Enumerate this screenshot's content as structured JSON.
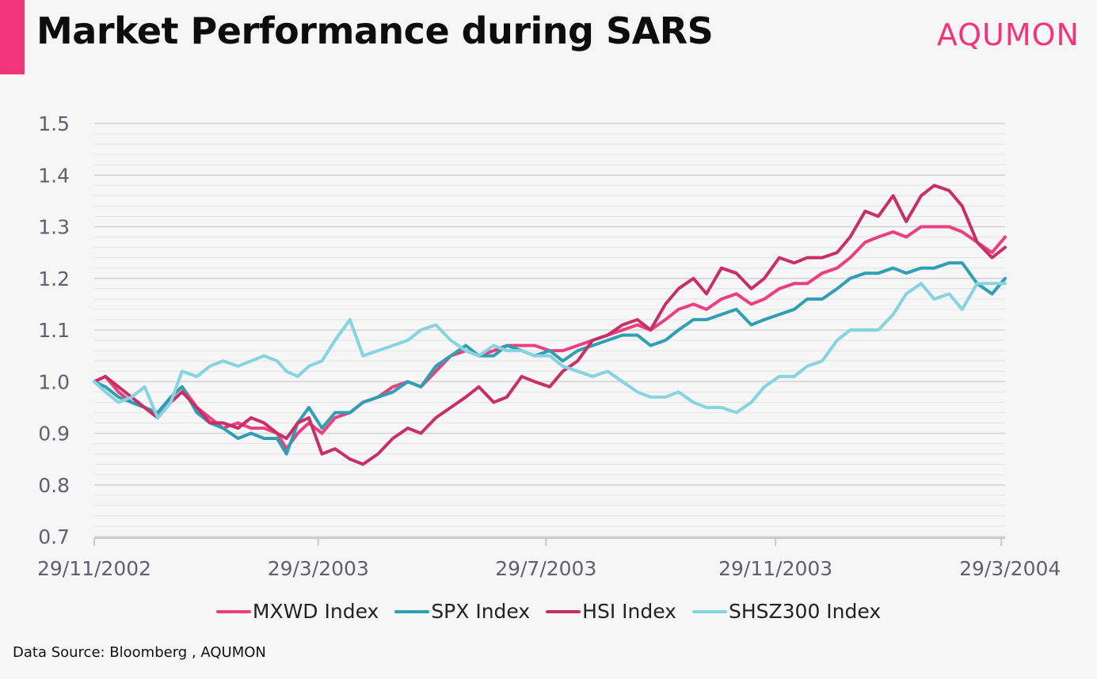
{
  "header": {
    "title": "Market Performance during SARS",
    "logo_text": "AQUMON",
    "accent_color": "#f0357a"
  },
  "footer": {
    "source": "Data Source: Bloomberg , AQUMON"
  },
  "chart_data": {
    "type": "line",
    "title": "Market Performance during SARS",
    "xlabel": "",
    "ylabel": "",
    "ylim": [
      0.7,
      1.5
    ],
    "yticks": [
      "0.7",
      "0.8",
      "0.9",
      "1.0",
      "1.1",
      "1.2",
      "1.3",
      "1.4",
      "1.5"
    ],
    "x_range": [
      "2002-11-29",
      "2004-03-31"
    ],
    "x_ticks": [
      {
        "label": "29/11/2002",
        "date": "2002-11-29"
      },
      {
        "label": "29/3/2003",
        "date": "2003-03-29"
      },
      {
        "label": "29/7/2003",
        "date": "2003-07-29"
      },
      {
        "label": "29/11/2003",
        "date": "2003-11-29"
      },
      {
        "label": "29/3/2004",
        "date": "2004-03-29"
      }
    ],
    "grid": true,
    "legend_position": "bottom",
    "series": [
      {
        "name": "MXWD Index",
        "color": "#ec3f7f",
        "points": [
          [
            "2002-11-29",
            1.0
          ],
          [
            "2002-12-05",
            1.01
          ],
          [
            "2002-12-12",
            0.98
          ],
          [
            "2002-12-19",
            0.96
          ],
          [
            "2002-12-26",
            0.95
          ],
          [
            "2003-01-02",
            0.93
          ],
          [
            "2003-01-09",
            0.97
          ],
          [
            "2003-01-15",
            0.99
          ],
          [
            "2003-01-23",
            0.95
          ],
          [
            "2003-01-30",
            0.93
          ],
          [
            "2003-02-06",
            0.91
          ],
          [
            "2003-02-14",
            0.92
          ],
          [
            "2003-02-21",
            0.91
          ],
          [
            "2003-02-28",
            0.91
          ],
          [
            "2003-03-07",
            0.9
          ],
          [
            "2003-03-12",
            0.87
          ],
          [
            "2003-03-18",
            0.9
          ],
          [
            "2003-03-24",
            0.92
          ],
          [
            "2003-03-31",
            0.9
          ],
          [
            "2003-04-07",
            0.93
          ],
          [
            "2003-04-15",
            0.94
          ],
          [
            "2003-04-22",
            0.96
          ],
          [
            "2003-04-30",
            0.97
          ],
          [
            "2003-05-08",
            0.99
          ],
          [
            "2003-05-16",
            1.0
          ],
          [
            "2003-05-23",
            0.99
          ],
          [
            "2003-05-31",
            1.02
          ],
          [
            "2003-06-08",
            1.05
          ],
          [
            "2003-06-16",
            1.06
          ],
          [
            "2003-06-23",
            1.05
          ],
          [
            "2003-07-01",
            1.06
          ],
          [
            "2003-07-08",
            1.07
          ],
          [
            "2003-07-16",
            1.07
          ],
          [
            "2003-07-23",
            1.07
          ],
          [
            "2003-07-31",
            1.06
          ],
          [
            "2003-08-07",
            1.06
          ],
          [
            "2003-08-15",
            1.07
          ],
          [
            "2003-08-23",
            1.08
          ],
          [
            "2003-08-31",
            1.09
          ],
          [
            "2003-09-08",
            1.1
          ],
          [
            "2003-09-16",
            1.11
          ],
          [
            "2003-09-23",
            1.1
          ],
          [
            "2003-10-01",
            1.12
          ],
          [
            "2003-10-08",
            1.14
          ],
          [
            "2003-10-16",
            1.15
          ],
          [
            "2003-10-23",
            1.14
          ],
          [
            "2003-10-31",
            1.16
          ],
          [
            "2003-11-08",
            1.17
          ],
          [
            "2003-11-16",
            1.15
          ],
          [
            "2003-11-23",
            1.16
          ],
          [
            "2003-12-01",
            1.18
          ],
          [
            "2003-12-09",
            1.19
          ],
          [
            "2003-12-16",
            1.19
          ],
          [
            "2003-12-24",
            1.21
          ],
          [
            "2004-01-01",
            1.22
          ],
          [
            "2004-01-08",
            1.24
          ],
          [
            "2004-01-16",
            1.27
          ],
          [
            "2004-01-23",
            1.28
          ],
          [
            "2004-01-31",
            1.29
          ],
          [
            "2004-02-07",
            1.28
          ],
          [
            "2004-02-15",
            1.3
          ],
          [
            "2004-02-22",
            1.3
          ],
          [
            "2004-03-01",
            1.3
          ],
          [
            "2004-03-08",
            1.29
          ],
          [
            "2004-03-16",
            1.27
          ],
          [
            "2004-03-24",
            1.25
          ],
          [
            "2004-03-31",
            1.28
          ]
        ]
      },
      {
        "name": "SPX Index",
        "color": "#2f9fb4",
        "points": [
          [
            "2002-11-29",
            1.0
          ],
          [
            "2002-12-05",
            0.99
          ],
          [
            "2002-12-12",
            0.97
          ],
          [
            "2002-12-19",
            0.96
          ],
          [
            "2002-12-26",
            0.95
          ],
          [
            "2003-01-02",
            0.94
          ],
          [
            "2003-01-09",
            0.97
          ],
          [
            "2003-01-15",
            0.99
          ],
          [
            "2003-01-23",
            0.94
          ],
          [
            "2003-01-30",
            0.92
          ],
          [
            "2003-02-06",
            0.91
          ],
          [
            "2003-02-14",
            0.89
          ],
          [
            "2003-02-21",
            0.9
          ],
          [
            "2003-02-28",
            0.89
          ],
          [
            "2003-03-07",
            0.89
          ],
          [
            "2003-03-12",
            0.86
          ],
          [
            "2003-03-18",
            0.92
          ],
          [
            "2003-03-24",
            0.95
          ],
          [
            "2003-03-31",
            0.91
          ],
          [
            "2003-04-07",
            0.94
          ],
          [
            "2003-04-15",
            0.94
          ],
          [
            "2003-04-22",
            0.96
          ],
          [
            "2003-04-30",
            0.97
          ],
          [
            "2003-05-08",
            0.98
          ],
          [
            "2003-05-16",
            1.0
          ],
          [
            "2003-05-23",
            0.99
          ],
          [
            "2003-05-31",
            1.03
          ],
          [
            "2003-06-08",
            1.05
          ],
          [
            "2003-06-16",
            1.07
          ],
          [
            "2003-06-23",
            1.05
          ],
          [
            "2003-07-01",
            1.05
          ],
          [
            "2003-07-08",
            1.07
          ],
          [
            "2003-07-16",
            1.06
          ],
          [
            "2003-07-23",
            1.05
          ],
          [
            "2003-07-31",
            1.06
          ],
          [
            "2003-08-07",
            1.04
          ],
          [
            "2003-08-15",
            1.06
          ],
          [
            "2003-08-23",
            1.07
          ],
          [
            "2003-08-31",
            1.08
          ],
          [
            "2003-09-08",
            1.09
          ],
          [
            "2003-09-16",
            1.09
          ],
          [
            "2003-09-23",
            1.07
          ],
          [
            "2003-10-01",
            1.08
          ],
          [
            "2003-10-08",
            1.1
          ],
          [
            "2003-10-16",
            1.12
          ],
          [
            "2003-10-23",
            1.12
          ],
          [
            "2003-10-31",
            1.13
          ],
          [
            "2003-11-08",
            1.14
          ],
          [
            "2003-11-16",
            1.11
          ],
          [
            "2003-11-23",
            1.12
          ],
          [
            "2003-12-01",
            1.13
          ],
          [
            "2003-12-09",
            1.14
          ],
          [
            "2003-12-16",
            1.16
          ],
          [
            "2003-12-24",
            1.16
          ],
          [
            "2004-01-01",
            1.18
          ],
          [
            "2004-01-08",
            1.2
          ],
          [
            "2004-01-16",
            1.21
          ],
          [
            "2004-01-23",
            1.21
          ],
          [
            "2004-01-31",
            1.22
          ],
          [
            "2004-02-07",
            1.21
          ],
          [
            "2004-02-15",
            1.22
          ],
          [
            "2004-02-22",
            1.22
          ],
          [
            "2004-03-01",
            1.23
          ],
          [
            "2004-03-08",
            1.23
          ],
          [
            "2004-03-16",
            1.19
          ],
          [
            "2004-03-24",
            1.17
          ],
          [
            "2004-03-31",
            1.2
          ]
        ]
      },
      {
        "name": "HSI Index",
        "color": "#c72f66",
        "points": [
          [
            "2002-11-29",
            1.0
          ],
          [
            "2002-12-05",
            1.01
          ],
          [
            "2002-12-12",
            0.99
          ],
          [
            "2002-12-19",
            0.97
          ],
          [
            "2002-12-26",
            0.95
          ],
          [
            "2003-01-02",
            0.93
          ],
          [
            "2003-01-09",
            0.96
          ],
          [
            "2003-01-15",
            0.98
          ],
          [
            "2003-01-23",
            0.95
          ],
          [
            "2003-01-30",
            0.92
          ],
          [
            "2003-02-06",
            0.92
          ],
          [
            "2003-02-14",
            0.91
          ],
          [
            "2003-02-21",
            0.93
          ],
          [
            "2003-02-28",
            0.92
          ],
          [
            "2003-03-07",
            0.9
          ],
          [
            "2003-03-12",
            0.89
          ],
          [
            "2003-03-18",
            0.92
          ],
          [
            "2003-03-24",
            0.93
          ],
          [
            "2003-03-31",
            0.86
          ],
          [
            "2003-04-07",
            0.87
          ],
          [
            "2003-04-15",
            0.85
          ],
          [
            "2003-04-22",
            0.84
          ],
          [
            "2003-04-30",
            0.86
          ],
          [
            "2003-05-08",
            0.89
          ],
          [
            "2003-05-16",
            0.91
          ],
          [
            "2003-05-23",
            0.9
          ],
          [
            "2003-05-31",
            0.93
          ],
          [
            "2003-06-08",
            0.95
          ],
          [
            "2003-06-16",
            0.97
          ],
          [
            "2003-06-23",
            0.99
          ],
          [
            "2003-07-01",
            0.96
          ],
          [
            "2003-07-08",
            0.97
          ],
          [
            "2003-07-16",
            1.01
          ],
          [
            "2003-07-23",
            1.0
          ],
          [
            "2003-07-31",
            0.99
          ],
          [
            "2003-08-07",
            1.02
          ],
          [
            "2003-08-15",
            1.04
          ],
          [
            "2003-08-23",
            1.08
          ],
          [
            "2003-08-31",
            1.09
          ],
          [
            "2003-09-08",
            1.11
          ],
          [
            "2003-09-16",
            1.12
          ],
          [
            "2003-09-23",
            1.1
          ],
          [
            "2003-10-01",
            1.15
          ],
          [
            "2003-10-08",
            1.18
          ],
          [
            "2003-10-16",
            1.2
          ],
          [
            "2003-10-23",
            1.17
          ],
          [
            "2003-10-31",
            1.22
          ],
          [
            "2003-11-08",
            1.21
          ],
          [
            "2003-11-16",
            1.18
          ],
          [
            "2003-11-23",
            1.2
          ],
          [
            "2003-12-01",
            1.24
          ],
          [
            "2003-12-09",
            1.23
          ],
          [
            "2003-12-16",
            1.24
          ],
          [
            "2003-12-24",
            1.24
          ],
          [
            "2004-01-01",
            1.25
          ],
          [
            "2004-01-08",
            1.28
          ],
          [
            "2004-01-16",
            1.33
          ],
          [
            "2004-01-23",
            1.32
          ],
          [
            "2004-01-31",
            1.36
          ],
          [
            "2004-02-07",
            1.31
          ],
          [
            "2004-02-15",
            1.36
          ],
          [
            "2004-02-22",
            1.38
          ],
          [
            "2004-03-01",
            1.37
          ],
          [
            "2004-03-08",
            1.34
          ],
          [
            "2004-03-16",
            1.27
          ],
          [
            "2004-03-24",
            1.24
          ],
          [
            "2004-03-31",
            1.26
          ]
        ]
      },
      {
        "name": "SHSZ300 Index",
        "color": "#86d3e2",
        "points": [
          [
            "2002-11-29",
            1.0
          ],
          [
            "2002-12-05",
            0.98
          ],
          [
            "2002-12-12",
            0.96
          ],
          [
            "2002-12-19",
            0.97
          ],
          [
            "2002-12-26",
            0.99
          ],
          [
            "2003-01-02",
            0.93
          ],
          [
            "2003-01-09",
            0.96
          ],
          [
            "2003-01-15",
            1.02
          ],
          [
            "2003-01-23",
            1.01
          ],
          [
            "2003-01-30",
            1.03
          ],
          [
            "2003-02-06",
            1.04
          ],
          [
            "2003-02-14",
            1.03
          ],
          [
            "2003-02-21",
            1.04
          ],
          [
            "2003-02-28",
            1.05
          ],
          [
            "2003-03-07",
            1.04
          ],
          [
            "2003-03-12",
            1.02
          ],
          [
            "2003-03-18",
            1.01
          ],
          [
            "2003-03-24",
            1.03
          ],
          [
            "2003-03-31",
            1.04
          ],
          [
            "2003-04-07",
            1.08
          ],
          [
            "2003-04-15",
            1.12
          ],
          [
            "2003-04-22",
            1.05
          ],
          [
            "2003-04-30",
            1.06
          ],
          [
            "2003-05-08",
            1.07
          ],
          [
            "2003-05-16",
            1.08
          ],
          [
            "2003-05-23",
            1.1
          ],
          [
            "2003-05-31",
            1.11
          ],
          [
            "2003-06-08",
            1.08
          ],
          [
            "2003-06-16",
            1.06
          ],
          [
            "2003-06-23",
            1.05
          ],
          [
            "2003-07-01",
            1.07
          ],
          [
            "2003-07-08",
            1.06
          ],
          [
            "2003-07-16",
            1.06
          ],
          [
            "2003-07-23",
            1.05
          ],
          [
            "2003-07-31",
            1.05
          ],
          [
            "2003-08-07",
            1.03
          ],
          [
            "2003-08-15",
            1.02
          ],
          [
            "2003-08-23",
            1.01
          ],
          [
            "2003-08-31",
            1.02
          ],
          [
            "2003-09-08",
            1.0
          ],
          [
            "2003-09-16",
            0.98
          ],
          [
            "2003-09-23",
            0.97
          ],
          [
            "2003-10-01",
            0.97
          ],
          [
            "2003-10-08",
            0.98
          ],
          [
            "2003-10-16",
            0.96
          ],
          [
            "2003-10-23",
            0.95
          ],
          [
            "2003-10-31",
            0.95
          ],
          [
            "2003-11-08",
            0.94
          ],
          [
            "2003-11-16",
            0.96
          ],
          [
            "2003-11-23",
            0.99
          ],
          [
            "2003-12-01",
            1.01
          ],
          [
            "2003-12-09",
            1.01
          ],
          [
            "2003-12-16",
            1.03
          ],
          [
            "2003-12-24",
            1.04
          ],
          [
            "2004-01-01",
            1.08
          ],
          [
            "2004-01-08",
            1.1
          ],
          [
            "2004-01-16",
            1.1
          ],
          [
            "2004-01-23",
            1.1
          ],
          [
            "2004-01-31",
            1.13
          ],
          [
            "2004-02-07",
            1.17
          ],
          [
            "2004-02-15",
            1.19
          ],
          [
            "2004-02-22",
            1.16
          ],
          [
            "2004-03-01",
            1.17
          ],
          [
            "2004-03-08",
            1.14
          ],
          [
            "2004-03-16",
            1.19
          ],
          [
            "2004-03-24",
            1.19
          ],
          [
            "2004-03-31",
            1.19
          ]
        ]
      }
    ]
  }
}
